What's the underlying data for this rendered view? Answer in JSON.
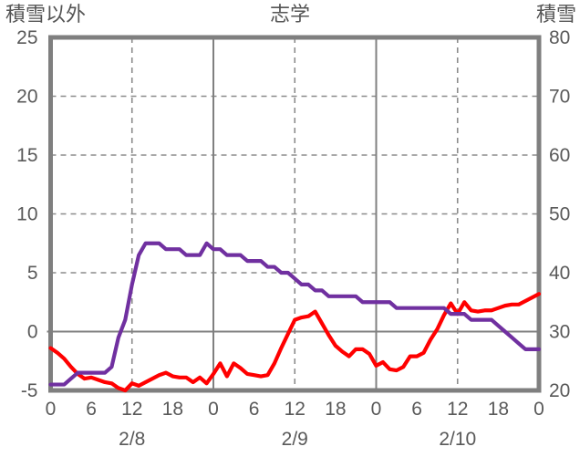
{
  "header": {
    "left_axis_title": "積雪以外",
    "title": "志学",
    "right_axis_title": "積雪"
  },
  "chart_data": {
    "type": "line",
    "title": "志学",
    "x_axis": {
      "unit": "hour",
      "start_hour": 0,
      "end_hour": 72,
      "tick_step_hours": 6,
      "tick_labels": [
        "0",
        "6",
        "12",
        "18",
        "0",
        "6",
        "12",
        "18",
        "0",
        "6",
        "12",
        "18",
        "0"
      ],
      "date_labels": [
        {
          "text": "2/8",
          "at_hour": 12
        },
        {
          "text": "2/9",
          "at_hour": 36
        },
        {
          "text": "2/10",
          "at_hour": 60
        }
      ]
    },
    "left_axis": {
      "title": "積雪以外",
      "min": -5,
      "max": 25,
      "tick_values": [
        25,
        20,
        15,
        10,
        5,
        0,
        -5
      ],
      "tick_labels": [
        "25",
        "20",
        "15",
        "10",
        "5",
        "0",
        "-5"
      ]
    },
    "right_axis": {
      "title": "積雪",
      "min": 20,
      "max": 80,
      "tick_values": [
        80,
        70,
        60,
        50,
        40,
        30,
        20
      ],
      "tick_labels": [
        "80",
        "70",
        "60",
        "50",
        "40",
        "30",
        "20"
      ]
    },
    "gridlines": {
      "horizontal_dashed_left_values": [
        20,
        15,
        10,
        5
      ],
      "horizontal_solid_left_values": [
        0
      ],
      "vertical_dashed_hours": [
        12,
        36,
        60
      ],
      "vertical_solid_hours": [
        24,
        48
      ]
    },
    "series": [
      {
        "name": "積雪以外",
        "axis": "left",
        "color": "#ff0000",
        "hourly_values": [
          -1.4,
          -1.8,
          -2.3,
          -3.0,
          -3.6,
          -4.0,
          -3.9,
          -4.1,
          -4.3,
          -4.4,
          -4.8,
          -5.0,
          -4.4,
          -4.6,
          -4.3,
          -4.0,
          -3.7,
          -3.5,
          -3.8,
          -3.9,
          -3.9,
          -4.3,
          -3.9,
          -4.4,
          -3.6,
          -2.7,
          -3.8,
          -2.7,
          -3.1,
          -3.6,
          -3.7,
          -3.8,
          -3.7,
          -2.7,
          -1.4,
          -0.2,
          1.0,
          1.2,
          1.3,
          1.7,
          0.7,
          -0.3,
          -1.2,
          -1.7,
          -2.1,
          -1.5,
          -1.5,
          -1.9,
          -2.9,
          -2.6,
          -3.2,
          -3.3,
          -3.0,
          -2.1,
          -2.1,
          -1.8,
          -0.7,
          0.2,
          1.4,
          2.4,
          1.5,
          2.5,
          1.8,
          1.7,
          1.8,
          1.8,
          2.0,
          2.2,
          2.3,
          2.3,
          2.6,
          2.9,
          3.2
        ]
      },
      {
        "name": "積雪",
        "axis": "right",
        "color": "#7030a0",
        "hourly_values": [
          21,
          21,
          21,
          22,
          23,
          23,
          23,
          23,
          23,
          24,
          29,
          32,
          38,
          43,
          45,
          45,
          45,
          44,
          44,
          44,
          43,
          43,
          43,
          45,
          44,
          44,
          43,
          43,
          43,
          42,
          42,
          42,
          41,
          41,
          40,
          40,
          39,
          38,
          38,
          37,
          37,
          36,
          36,
          36,
          36,
          36,
          35,
          35,
          35,
          35,
          35,
          34,
          34,
          34,
          34,
          34,
          34,
          34,
          34,
          33,
          33,
          33,
          32,
          32,
          32,
          32,
          31,
          30,
          29,
          28,
          27,
          27,
          27
        ]
      }
    ]
  },
  "colors": {
    "background": "#ffffff",
    "plot_border": "#7f7f7f",
    "grid_dashed": "#8c8c8c",
    "grid_solid": "#808080",
    "text": "#595959",
    "series_other_than_snow": "#ff0000",
    "series_snow": "#7030a0"
  }
}
